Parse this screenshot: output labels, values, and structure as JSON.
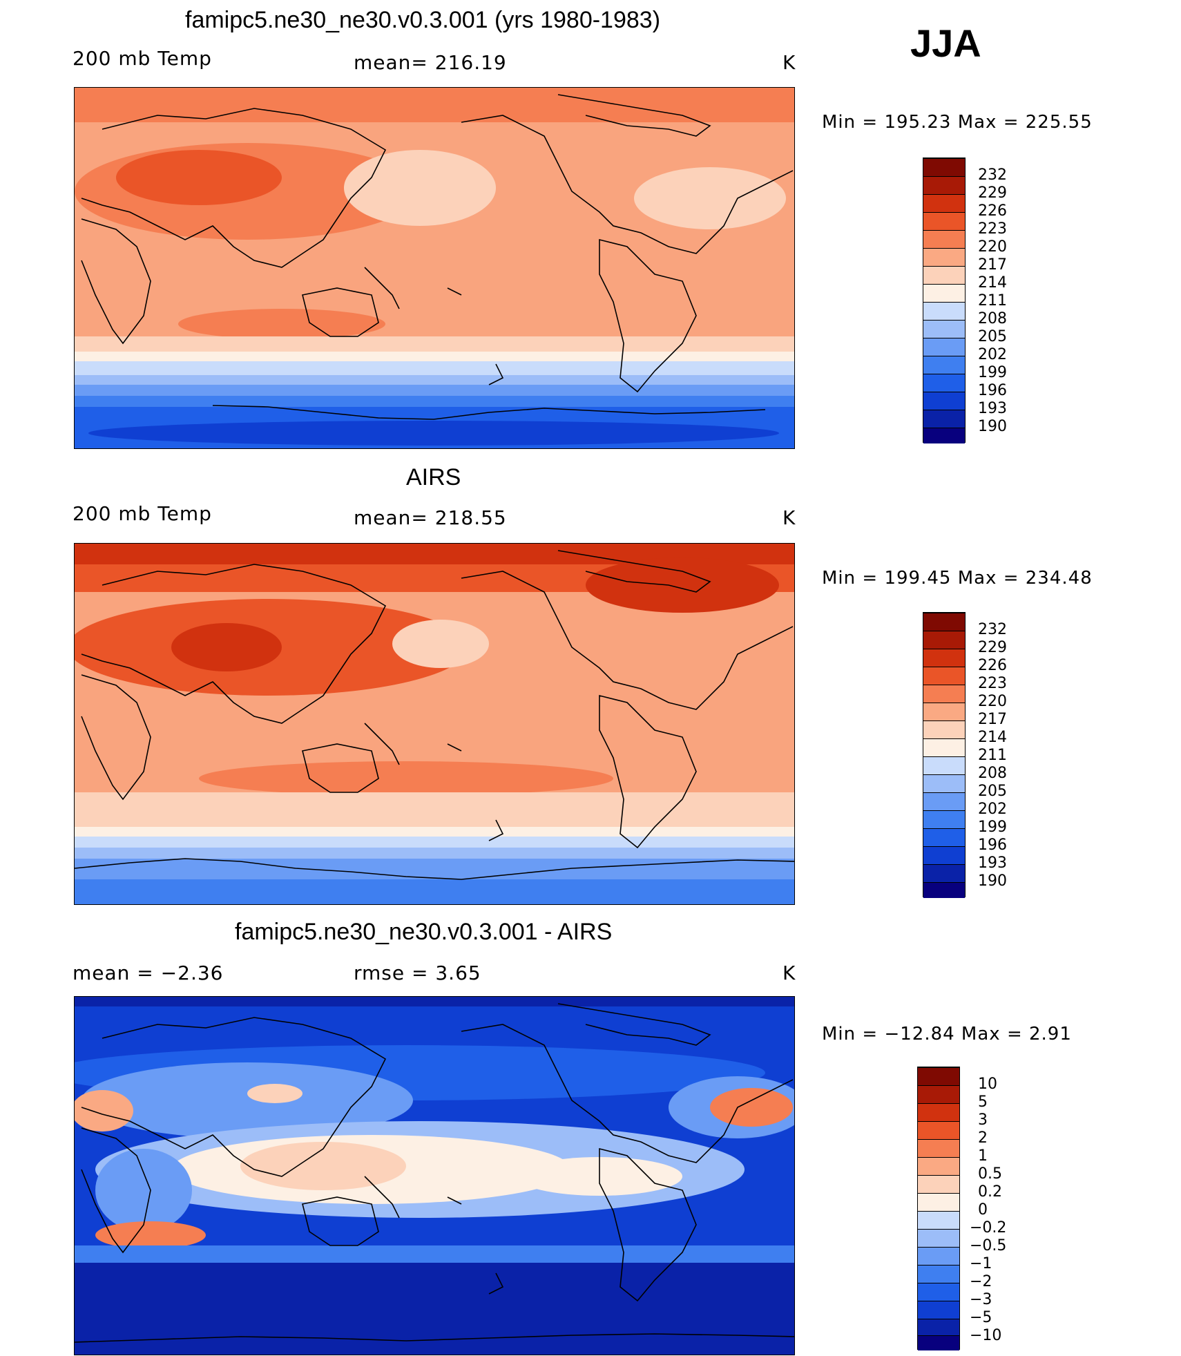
{
  "season": "JJA",
  "colors": {
    "temp_scale": [
      "#08007e",
      "#0a22a8",
      "#0f3fd2",
      "#1f5fe8",
      "#3f7ff0",
      "#6a9cf5",
      "#9cbdf8",
      "#c9dcfb",
      "#fdf0e4",
      "#fcd2ba",
      "#faa983",
      "#f57e52",
      "#ea5528",
      "#d1320f",
      "#a81a06",
      "#7f0a02"
    ],
    "diff_scale": [
      "#08007e",
      "#0a22a8",
      "#0f3fd2",
      "#1f5fe8",
      "#3f7ff0",
      "#6a9cf5",
      "#9cbdf8",
      "#c9dcfb",
      "#fdf0e4",
      "#fcd2ba",
      "#faa983",
      "#f57e52",
      "#ea5528",
      "#d1320f",
      "#a81a06",
      "#7f0a02"
    ]
  },
  "panels": [
    {
      "title": "famipc5.ne30_ne30.v0.3.001 (yrs 1980-1983)",
      "left": "200 mb Temp",
      "center": "mean= 216.19",
      "units": "K",
      "minmax": "Min  =  195.23  Max  =  225.55",
      "colorbar_ticks": [
        "232",
        "229",
        "226",
        "223",
        "220",
        "217",
        "214",
        "211",
        "208",
        "205",
        "202",
        "199",
        "196",
        "193",
        "190"
      ]
    },
    {
      "title": "AIRS",
      "left": "200 mb Temp",
      "center": "mean= 218.55",
      "units": "K",
      "minmax": "Min  =  199.45  Max  =  234.48",
      "colorbar_ticks": [
        "232",
        "229",
        "226",
        "223",
        "220",
        "217",
        "214",
        "211",
        "208",
        "205",
        "202",
        "199",
        "196",
        "193",
        "190"
      ]
    },
    {
      "title": "famipc5.ne30_ne30.v0.3.001 - AIRS",
      "left": "mean =    −2.36",
      "center": "rmse =     3.65",
      "units": "K",
      "minmax": "Min  =  −12.84  Max  =      2.91",
      "colorbar_ticks": [
        "10",
        "5",
        "3",
        "2",
        "1",
        "0.5",
        "0.2",
        "0",
        "−0.2",
        "−0.5",
        "−1",
        "−2",
        "−3",
        "−5",
        "−10"
      ]
    }
  ],
  "map_legend_icons": [
    "coastline-outline"
  ]
}
